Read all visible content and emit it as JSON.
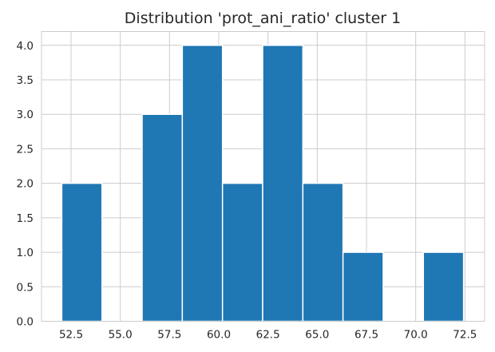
{
  "chart_data": {
    "type": "bar",
    "title": "Distribution 'prot_ani_ratio' cluster 1",
    "xlabel": "",
    "ylabel": "",
    "bar_color": "#1f77b4",
    "grid": true,
    "xlim": [
      51.0,
      73.5
    ],
    "ylim": [
      0,
      4.2
    ],
    "x_ticks": [
      52.5,
      55.0,
      57.5,
      60.0,
      62.5,
      65.0,
      67.5,
      70.0,
      72.5
    ],
    "x_tick_labels": [
      "52.5",
      "55.0",
      "57.5",
      "60.0",
      "62.5",
      "65.0",
      "67.5",
      "70.0",
      "72.5"
    ],
    "y_ticks": [
      0,
      0.5,
      1.0,
      1.5,
      2.0,
      2.5,
      3.0,
      3.5,
      4.0
    ],
    "y_tick_labels": [
      "0.0",
      "0.5",
      "1.0",
      "1.5",
      "2.0",
      "2.5",
      "3.0",
      "3.5",
      "4.0"
    ],
    "bins": [
      {
        "x0": 52.03,
        "x1": 54.07,
        "count": 2
      },
      {
        "x0": 54.07,
        "x1": 56.11,
        "count": 0
      },
      {
        "x0": 56.11,
        "x1": 58.15,
        "count": 3
      },
      {
        "x0": 58.15,
        "x1": 60.19,
        "count": 4
      },
      {
        "x0": 60.19,
        "x1": 62.23,
        "count": 2
      },
      {
        "x0": 62.23,
        "x1": 64.27,
        "count": 4
      },
      {
        "x0": 64.27,
        "x1": 66.31,
        "count": 2
      },
      {
        "x0": 66.31,
        "x1": 68.35,
        "count": 1
      },
      {
        "x0": 68.35,
        "x1": 70.39,
        "count": 0
      },
      {
        "x0": 70.39,
        "x1": 72.43,
        "count": 1
      }
    ]
  }
}
